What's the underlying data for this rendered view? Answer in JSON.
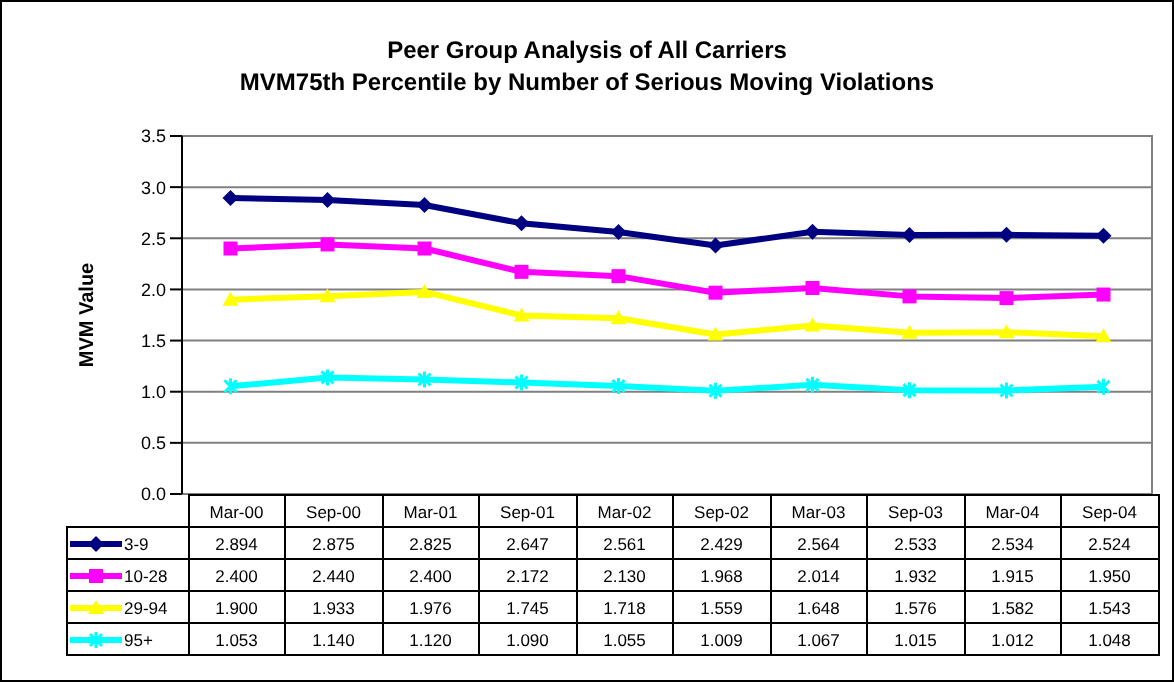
{
  "chart_data": {
    "type": "line",
    "title": "Peer Group Analysis of All Carriers",
    "subtitle": "MVM75th Percentile by Number of Serious Moving Violations",
    "ylabel": "MVM Value",
    "categories": [
      "Mar-00",
      "Sep-00",
      "Mar-01",
      "Sep-01",
      "Mar-02",
      "Sep-02",
      "Mar-03",
      "Sep-03",
      "Mar-04",
      "Sep-04"
    ],
    "series": [
      {
        "name": "3-9",
        "color": "#000080",
        "marker": "diamond",
        "values": [
          2.894,
          2.875,
          2.825,
          2.647,
          2.561,
          2.429,
          2.564,
          2.533,
          2.534,
          2.524
        ],
        "value_labels": [
          "2.894",
          "2.875",
          "2.825",
          "2.647",
          "2.561",
          "2.429",
          "2.564",
          "2.533",
          "2.534",
          "2.524"
        ]
      },
      {
        "name": "10-28",
        "color": "#ff00ff",
        "marker": "square",
        "values": [
          2.4,
          2.44,
          2.4,
          2.172,
          2.13,
          1.968,
          2.014,
          1.932,
          1.915,
          1.95
        ],
        "value_labels": [
          "2.400",
          "2.440",
          "2.400",
          "2.172",
          "2.130",
          "1.968",
          "2.014",
          "1.932",
          "1.915",
          "1.950"
        ]
      },
      {
        "name": "29-94",
        "color": "#ffff00",
        "marker": "triangle",
        "values": [
          1.9,
          1.933,
          1.976,
          1.745,
          1.718,
          1.559,
          1.648,
          1.576,
          1.582,
          1.543
        ],
        "value_labels": [
          "1.900",
          "1.933",
          "1.976",
          "1.745",
          "1.718",
          "1.559",
          "1.648",
          "1.576",
          "1.582",
          "1.543"
        ]
      },
      {
        "name": "95+",
        "color": "#00ffff",
        "marker": "cross",
        "values": [
          1.053,
          1.14,
          1.12,
          1.09,
          1.055,
          1.009,
          1.067,
          1.015,
          1.012,
          1.048
        ],
        "value_labels": [
          "1.053",
          "1.140",
          "1.120",
          "1.090",
          "1.055",
          "1.009",
          "1.067",
          "1.015",
          "1.012",
          "1.048"
        ]
      }
    ],
    "ylim": [
      0,
      3.5
    ],
    "yticks": [
      {
        "value": 0,
        "label": "0.0"
      },
      0.5,
      {
        "value": 1,
        "label": "1.0"
      },
      1.5,
      {
        "value": 2,
        "label": "2.0"
      },
      2.5,
      {
        "value": 3,
        "label": "3.0"
      },
      3.5
    ],
    "grid": "y",
    "legend": "bottom"
  }
}
